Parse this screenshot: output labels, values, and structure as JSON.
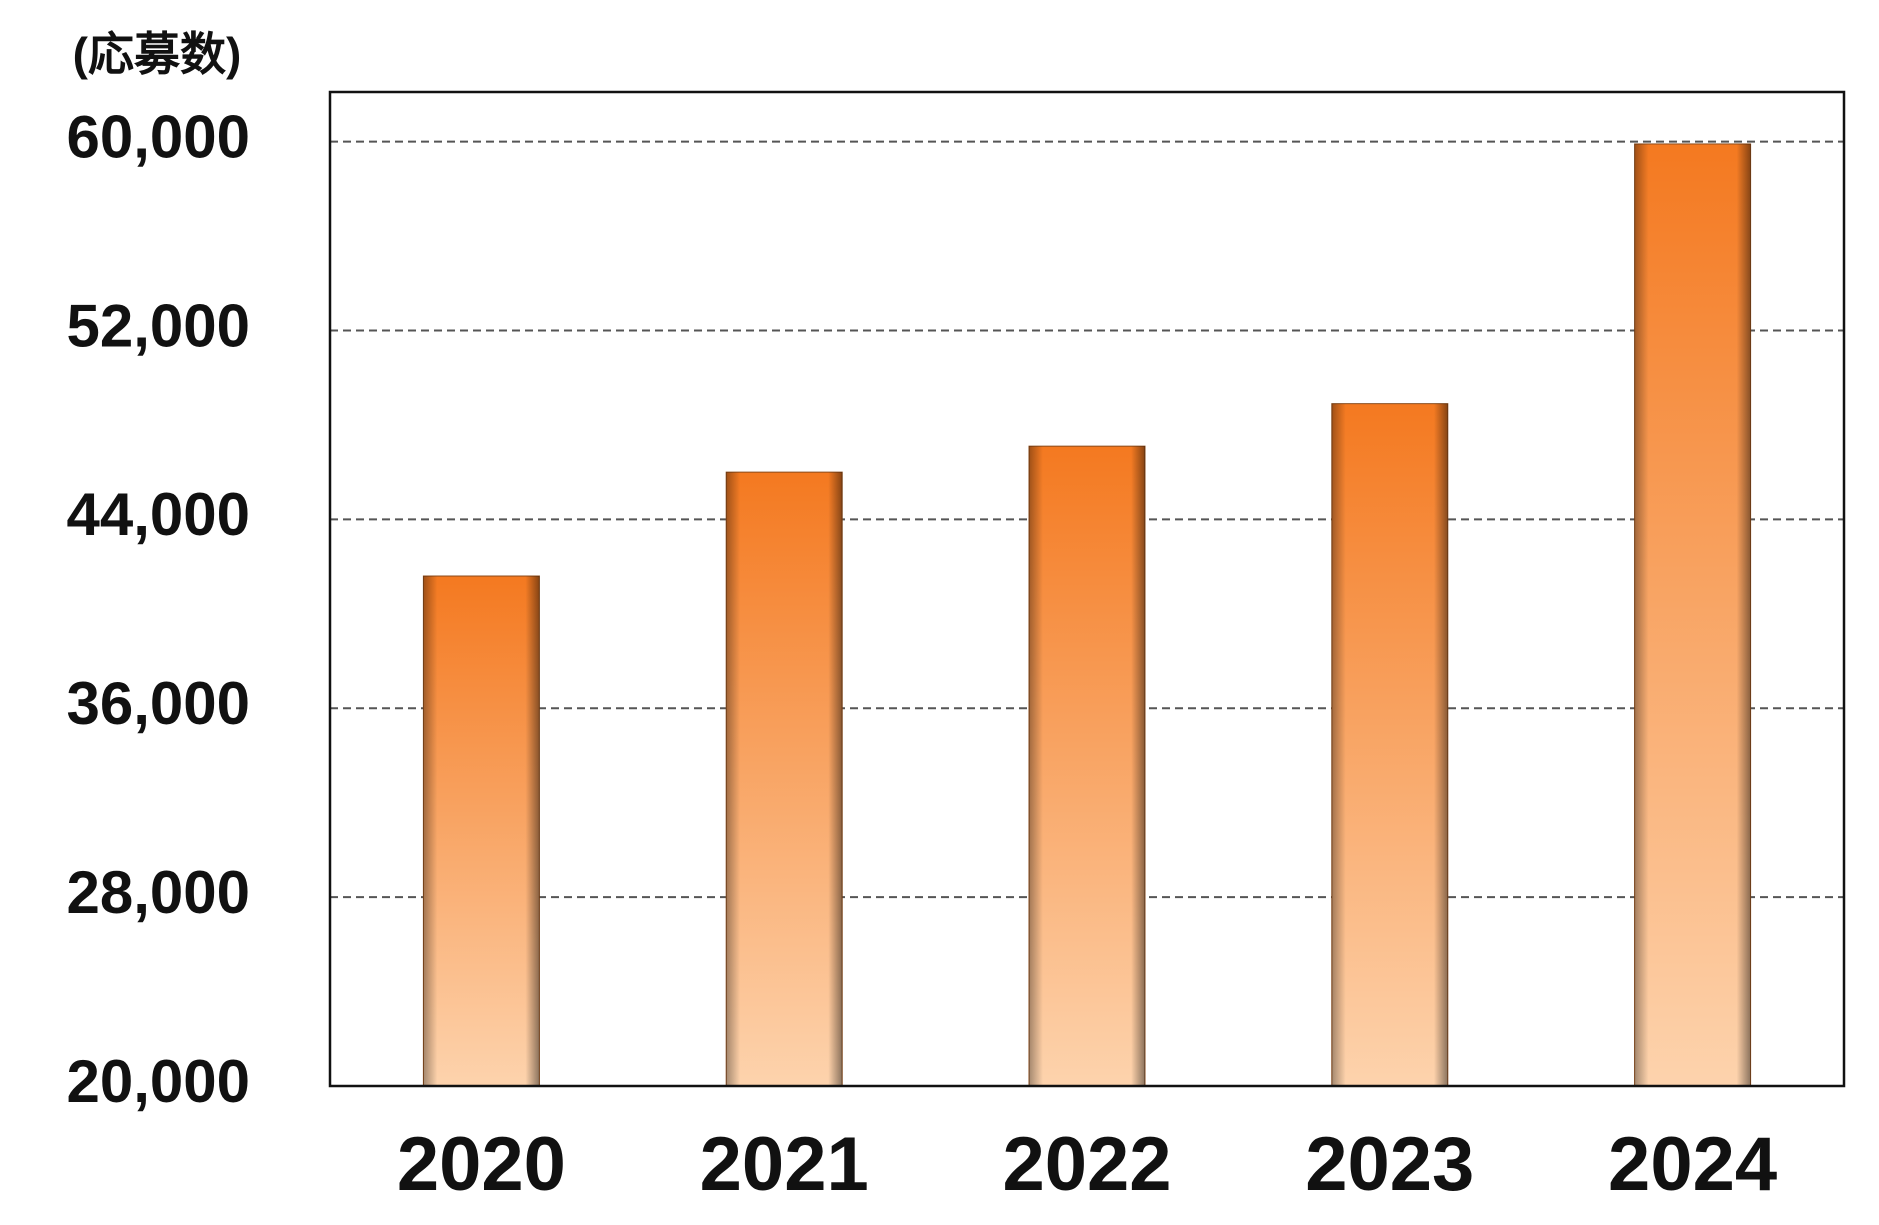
{
  "chart_data": {
    "type": "bar",
    "y_axis_label": "(応募数)",
    "categories": [
      "2020",
      "2021",
      "2022",
      "2023",
      "2024"
    ],
    "values": [
      41600,
      46000,
      47100,
      48900,
      59900
    ],
    "color": "#f47920",
    "ylim": [
      20000,
      62100
    ],
    "yticks": [
      {
        "value": 20000,
        "label": "20,000"
      },
      {
        "value": 28000,
        "label": "28,000"
      },
      {
        "value": 36000,
        "label": "36,000"
      },
      {
        "value": 44000,
        "label": "44,000"
      },
      {
        "value": 52000,
        "label": "52,000"
      },
      {
        "value": 60000,
        "label": "60,000"
      }
    ],
    "grid": true
  }
}
